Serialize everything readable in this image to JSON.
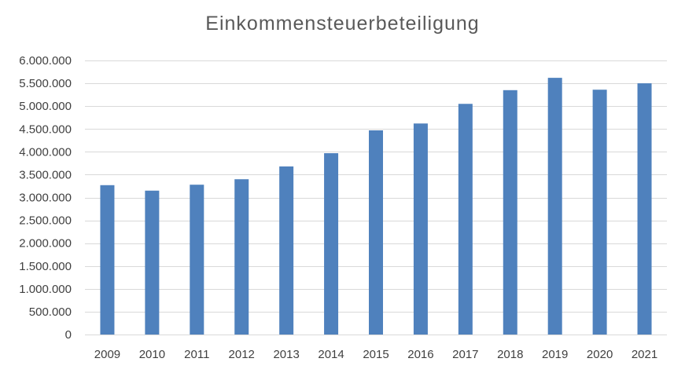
{
  "chart_data": {
    "type": "bar",
    "title": "Einkommensteuerbeteiligung",
    "xlabel": "",
    "ylabel": "",
    "categories": [
      "2009",
      "2010",
      "2011",
      "2012",
      "2013",
      "2014",
      "2015",
      "2016",
      "2017",
      "2018",
      "2019",
      "2020",
      "2021"
    ],
    "values": [
      3270000,
      3150000,
      3280000,
      3400000,
      3680000,
      3970000,
      4470000,
      4620000,
      5050000,
      5350000,
      5620000,
      5360000,
      5500000
    ],
    "ylim": [
      0,
      6000000
    ],
    "yticks": [
      0,
      500000,
      1000000,
      1500000,
      2000000,
      2500000,
      3000000,
      3500000,
      4000000,
      4500000,
      5000000,
      5500000,
      6000000
    ],
    "ytick_labels": [
      "0",
      "500.000",
      "1.000.000",
      "1.500.000",
      "2.000.000",
      "2.500.000",
      "3.000.000",
      "3.500.000",
      "4.000.000",
      "4.500.000",
      "5.000.000",
      "5.500.000",
      "6.000.000"
    ],
    "grid": true,
    "legend": "none",
    "colors": {
      "bar": "#4f81bd",
      "grid": "#d9d9d9",
      "text": "#404040",
      "title": "#595959"
    }
  }
}
